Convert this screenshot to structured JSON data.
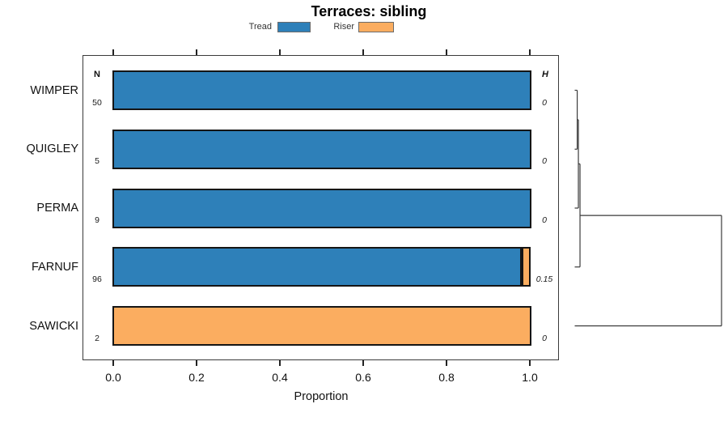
{
  "title": "Terraces: sibling",
  "legend": {
    "items": [
      {
        "label": "Tread",
        "color": "#2E80B9"
      },
      {
        "label": "Riser",
        "color": "#FBAD60"
      }
    ]
  },
  "columns": {
    "n_header": "N",
    "h_header": "H"
  },
  "axis": {
    "label": "Proportion",
    "ticks": [
      "0.0",
      "0.2",
      "0.4",
      "0.6",
      "0.8",
      "1.0"
    ],
    "range": [
      0,
      1
    ]
  },
  "chart_data": {
    "type": "bar",
    "orientation": "horizontal",
    "stacked": true,
    "title": "Terraces: sibling",
    "xlabel": "Proportion",
    "xlim": [
      0,
      1
    ],
    "grid": false,
    "legend_position": "top",
    "categories": [
      "WIMPER",
      "QUIGLEY",
      "PERMA",
      "FARNUF",
      "SAWICKI"
    ],
    "n_values": [
      "50",
      "5",
      "9",
      "96",
      "2"
    ],
    "h_values": [
      "0",
      "0",
      "0",
      "0.15",
      "0"
    ],
    "series": [
      {
        "name": "Tread",
        "color": "#2E80B9",
        "values": [
          1,
          1,
          1,
          0.977,
          0
        ]
      },
      {
        "name": "Riser",
        "color": "#FBAD60",
        "values": [
          0,
          0,
          0,
          0.023,
          1
        ]
      }
    ],
    "dendrogram": {
      "leaf_order": [
        "WIMPER",
        "QUIGLEY",
        "PERMA",
        "FARNUF",
        "SAWICKI"
      ],
      "merges": [
        {
          "children": [
            "WIMPER",
            "QUIGLEY"
          ],
          "height": 0.017
        },
        {
          "children": [
            "m0",
            "PERMA"
          ],
          "height": 0.025
        },
        {
          "children": [
            "m1",
            "FARNUF"
          ],
          "height": 0.036
        },
        {
          "children": [
            "m2",
            "SAWICKI"
          ],
          "height": 1.0
        }
      ]
    }
  }
}
